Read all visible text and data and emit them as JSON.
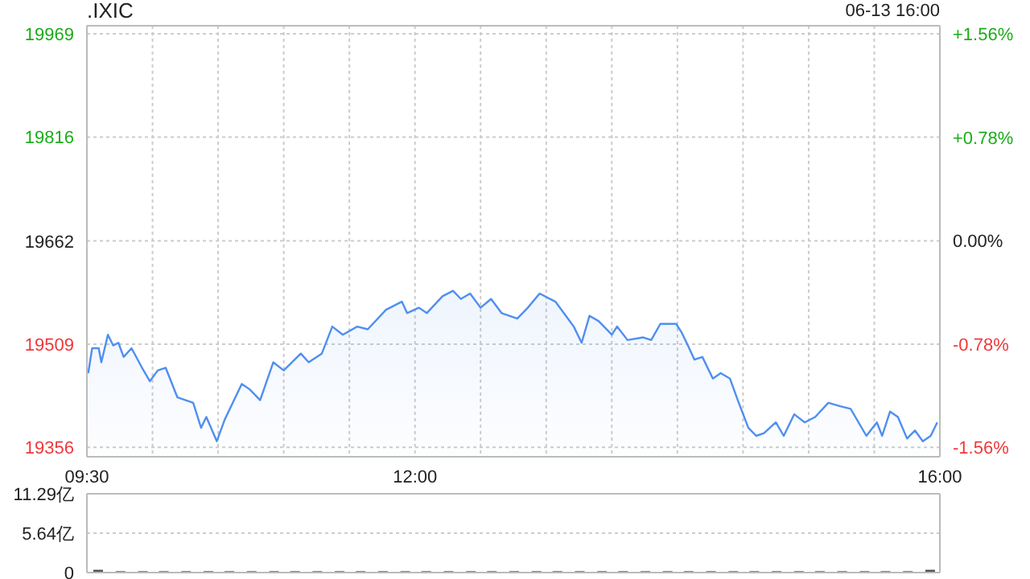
{
  "chart_data": [
    {
      "type": "area",
      "title": ".IXIC",
      "subtitle": "06-13 16:00",
      "grid": true,
      "xlim": [
        9.5,
        16
      ],
      "xticks": [
        {
          "value": 9.5,
          "label": "09:30"
        },
        {
          "value": 10,
          "label": null
        },
        {
          "value": 10.5,
          "label": null
        },
        {
          "value": 11,
          "label": null
        },
        {
          "value": 11.5,
          "label": null
        },
        {
          "value": 12,
          "label": "12:00"
        },
        {
          "value": 12.5,
          "label": null
        },
        {
          "value": 13,
          "label": null
        },
        {
          "value": 13.5,
          "label": null
        },
        {
          "value": 14,
          "label": null
        },
        {
          "value": 14.5,
          "label": null
        },
        {
          "value": 15,
          "label": null
        },
        {
          "value": 15.5,
          "label": null
        },
        {
          "value": 16,
          "label": "16:00"
        }
      ],
      "ylim": [
        19342,
        19981
      ],
      "yticks": [
        19356,
        19509,
        19662,
        19816,
        19969
      ],
      "y2lim": [
        -1.63,
        1.62
      ],
      "y2ticks": [
        {
          "value": -1.56,
          "label": "-1.56%"
        },
        {
          "value": -0.78,
          "label": "-0.78%"
        },
        {
          "value": 0,
          "label": "0.00%"
        },
        {
          "value": 0.78,
          "label": "+0.78%"
        },
        {
          "value": 1.56,
          "label": "+1.56%"
        }
      ],
      "x": [
        9.51,
        9.54,
        9.59,
        9.61,
        9.66,
        9.7,
        9.74,
        9.78,
        9.84,
        9.92,
        9.98,
        10.04,
        10.1,
        10.19,
        10.31,
        10.37,
        10.41,
        10.49,
        10.55,
        10.68,
        10.74,
        10.82,
        10.92,
        11.0,
        11.13,
        11.19,
        11.29,
        11.37,
        11.45,
        11.56,
        11.64,
        11.78,
        11.9,
        11.94,
        12.03,
        12.09,
        12.21,
        12.29,
        12.35,
        12.42,
        12.5,
        12.58,
        12.66,
        12.78,
        12.86,
        12.95,
        13.07,
        13.15,
        13.21,
        13.27,
        13.33,
        13.4,
        13.5,
        13.54,
        13.62,
        13.74,
        13.8,
        13.87,
        13.99,
        14.03,
        14.07,
        14.13,
        14.19,
        14.27,
        14.33,
        14.4,
        14.46,
        14.54,
        14.6,
        14.66,
        14.75,
        14.81,
        14.89,
        14.97,
        15.05,
        15.15,
        15.24,
        15.32,
        15.44,
        15.52,
        15.56,
        15.62,
        15.68,
        15.75,
        15.81,
        15.87,
        15.93,
        15.98
      ],
      "series": [
        {
          "color": "#4f8ff0",
          "values": [
            19466,
            19503,
            19503,
            19482,
            19523,
            19507,
            19511,
            19490,
            19503,
            19474,
            19454,
            19470,
            19474,
            19430,
            19422,
            19385,
            19401,
            19365,
            19397,
            19450,
            19442,
            19426,
            19482,
            19470,
            19495,
            19482,
            19495,
            19535,
            19523,
            19535,
            19531,
            19560,
            19572,
            19555,
            19563,
            19555,
            19580,
            19588,
            19576,
            19584,
            19563,
            19576,
            19555,
            19547,
            19563,
            19584,
            19572,
            19551,
            19535,
            19511,
            19551,
            19543,
            19523,
            19535,
            19515,
            19519,
            19515,
            19539,
            19539,
            19527,
            19511,
            19486,
            19490,
            19458,
            19466,
            19458,
            19426,
            19385,
            19373,
            19377,
            19393,
            19373,
            19405,
            19393,
            19401,
            19422,
            19417,
            19413,
            19373,
            19393,
            19373,
            19409,
            19401,
            19369,
            19381,
            19365,
            19373,
            19393
          ]
        }
      ]
    },
    {
      "type": "bar",
      "tick_labels": "y",
      "grid": "y",
      "xlim": [
        9.5,
        16
      ],
      "ylim": [
        0,
        11.29
      ],
      "yticks": [
        {
          "value": 0,
          "label": "0"
        },
        {
          "value": 5.64,
          "label": "5.64亿"
        },
        {
          "value": 11.29,
          "label": "11.29亿"
        }
      ],
      "x": [
        9.58,
        9.75,
        9.92,
        10.08,
        10.25,
        10.42,
        10.58,
        10.75,
        10.92,
        11.08,
        11.25,
        11.42,
        11.58,
        11.75,
        11.92,
        12.08,
        12.25,
        12.42,
        12.58,
        12.75,
        12.92,
        13.08,
        13.25,
        13.42,
        13.58,
        13.75,
        13.92,
        14.08,
        14.25,
        14.42,
        14.58,
        14.75,
        14.92,
        15.08,
        15.25,
        15.42,
        15.58,
        15.75,
        15.92
      ],
      "series": [
        {
          "color": "#555555",
          "values": [
            0.4,
            0.2,
            0.2,
            0.2,
            0.2,
            0.2,
            0.2,
            0.2,
            0.2,
            0.2,
            0.2,
            0.2,
            0.2,
            0.2,
            0.2,
            0.2,
            0.2,
            0.2,
            0.2,
            0.2,
            0.2,
            0.2,
            0.2,
            0.2,
            0.2,
            0.2,
            0.2,
            0.2,
            0.2,
            0.2,
            0.2,
            0.2,
            0.2,
            0.2,
            0.2,
            0.2,
            0.2,
            0.2,
            0.4
          ]
        }
      ]
    }
  ]
}
